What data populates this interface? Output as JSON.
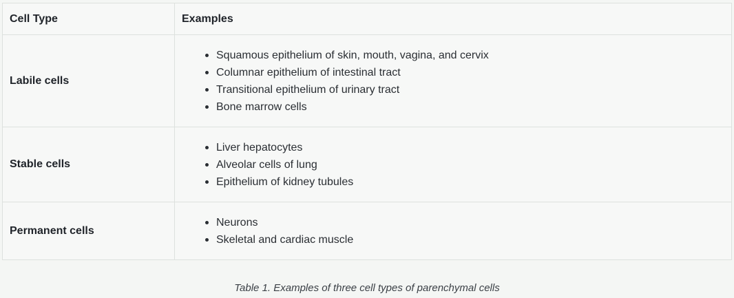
{
  "table": {
    "headers": [
      "Cell Type",
      "Examples"
    ],
    "rows": [
      {
        "type": "Labile cells",
        "examples": [
          "Squamous epithelium of skin, mouth, vagina, and cervix",
          "Columnar epithelium of intestinal tract",
          "Transitional epithelium of urinary tract",
          "Bone marrow cells"
        ]
      },
      {
        "type": "Stable cells",
        "examples": [
          "Liver hepatocytes",
          "Alveolar cells of lung",
          "Epithelium of kidney tubules"
        ]
      },
      {
        "type": "Permanent cells",
        "examples": [
          "Neurons",
          "Skeletal and cardiac muscle"
        ]
      }
    ]
  },
  "caption": "Table 1. Examples of three cell types of parenchymal cells"
}
